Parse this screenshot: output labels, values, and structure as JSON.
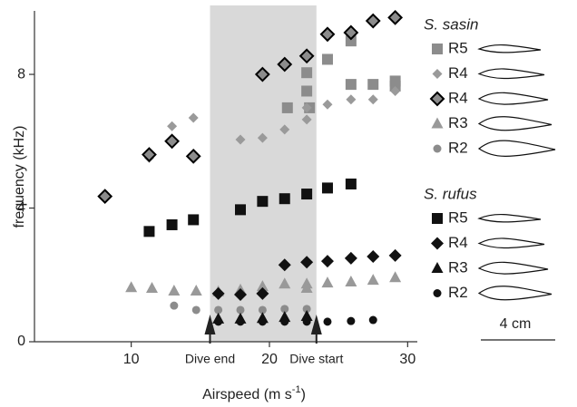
{
  "chart_data": {
    "type": "scatter",
    "xlabel": [
      "Airspeed (m s",
      "-1",
      ")"
    ],
    "ylabel": "frequency (kHz)",
    "xlim": [
      3,
      30.7
    ],
    "ylim": [
      0,
      9.9
    ],
    "xticks": [
      10,
      20,
      30
    ],
    "yticks": [
      0,
      4,
      8
    ],
    "span": {
      "x": [
        15.7,
        23.4
      ],
      "color": "#d9d9d9"
    },
    "annotations": [
      {
        "text": "Dive end",
        "x": 15.7
      },
      {
        "text": "Dive start",
        "x": 23.4
      }
    ],
    "scale_bar": "4 cm",
    "groups": [
      {
        "name": "S. sasin",
        "series": [
          {
            "name": "R5",
            "marker": "square",
            "color": "#8c8c8c",
            "edgecolor": "none",
            "x": [
              21.3,
              22.9,
              22.7,
              22.7,
              24.2,
              25.9,
              25.9,
              27.5,
              29.1,
              29.1
            ],
            "values": [
              7.0,
              7.0,
              8.05,
              7.5,
              8.45,
              9.0,
              7.7,
              7.7,
              7.8,
              7.65
            ]
          },
          {
            "name": "R4",
            "marker": "diamond-small",
            "color": "#9a9a9a",
            "edgecolor": "none",
            "x": [
              11.3,
              12.95,
              14.5,
              17.9,
              19.5,
              21.1,
              22.7,
              22.7,
              24.2,
              25.9,
              27.5,
              29.1
            ],
            "values": [
              5.5,
              6.45,
              6.7,
              6.05,
              6.1,
              6.35,
              6.65,
              7.0,
              7.1,
              7.25,
              7.25,
              7.5
            ]
          },
          {
            "name": "R4",
            "marker": "diamond",
            "color": "#8c8c8c",
            "edgecolor": "#000000",
            "x": [
              8.1,
              11.3,
              12.95,
              14.5,
              19.5,
              21.1,
              22.7,
              24.2,
              25.9,
              27.5,
              29.1
            ],
            "values": [
              4.35,
              5.6,
              6.0,
              5.55,
              8.0,
              8.3,
              8.55,
              9.2,
              9.25,
              9.6,
              9.7
            ]
          },
          {
            "name": "R3",
            "marker": "triangle",
            "color": "#999999",
            "edgecolor": "none",
            "x": [
              10,
              11.5,
              13.1,
              14.7,
              16.3,
              17.9,
              19.5,
              21.1,
              22.7,
              22.7,
              24.2,
              25.9,
              27.5,
              29.1
            ],
            "values": [
              1.62,
              1.6,
              1.52,
              1.52,
              1.5,
              1.55,
              1.65,
              1.73,
              1.73,
              1.6,
              1.76,
              1.79,
              1.84,
              1.92
            ]
          },
          {
            "name": "R2",
            "marker": "circle",
            "color": "#8c8c8c",
            "edgecolor": "none",
            "x": [
              13.1,
              14.7,
              16.3,
              17.9,
              19.5,
              21.1,
              22.7
            ],
            "values": [
              1.08,
              0.95,
              0.95,
              0.95,
              0.95,
              0.98,
              0.98
            ]
          }
        ]
      },
      {
        "name": "S. rufus",
        "series": [
          {
            "name": "R5",
            "marker": "square",
            "color": "#111111",
            "edgecolor": "none",
            "x": [
              11.3,
              12.95,
              14.5,
              17.9,
              19.5,
              21.1,
              22.7,
              24.2,
              25.9
            ],
            "values": [
              3.3,
              3.5,
              3.65,
              3.95,
              4.2,
              4.28,
              4.42,
              4.6,
              4.72
            ]
          },
          {
            "name": "R4",
            "marker": "diamond",
            "color": "#111111",
            "edgecolor": "none",
            "x": [
              16.3,
              17.9,
              19.5,
              21.1,
              22.7,
              24.2,
              25.9,
              27.5,
              29.1
            ],
            "values": [
              1.44,
              1.41,
              1.44,
              2.3,
              2.38,
              2.41,
              2.5,
              2.55,
              2.58
            ]
          },
          {
            "name": "R3",
            "marker": "triangle",
            "color": "#111111",
            "edgecolor": "none",
            "x": [
              16.3,
              17.9,
              19.5,
              21.1,
              22.7
            ],
            "values": [
              0.68,
              0.68,
              0.7,
              0.73,
              0.76
            ]
          },
          {
            "name": "R2",
            "marker": "circle",
            "color": "#111111",
            "edgecolor": "none",
            "x": [
              16.3,
              17.9,
              19.5,
              21.1,
              22.7,
              24.2,
              25.9,
              27.5
            ],
            "values": [
              0.6,
              0.6,
              0.6,
              0.6,
              0.6,
              0.6,
              0.62,
              0.65
            ]
          }
        ]
      }
    ]
  }
}
